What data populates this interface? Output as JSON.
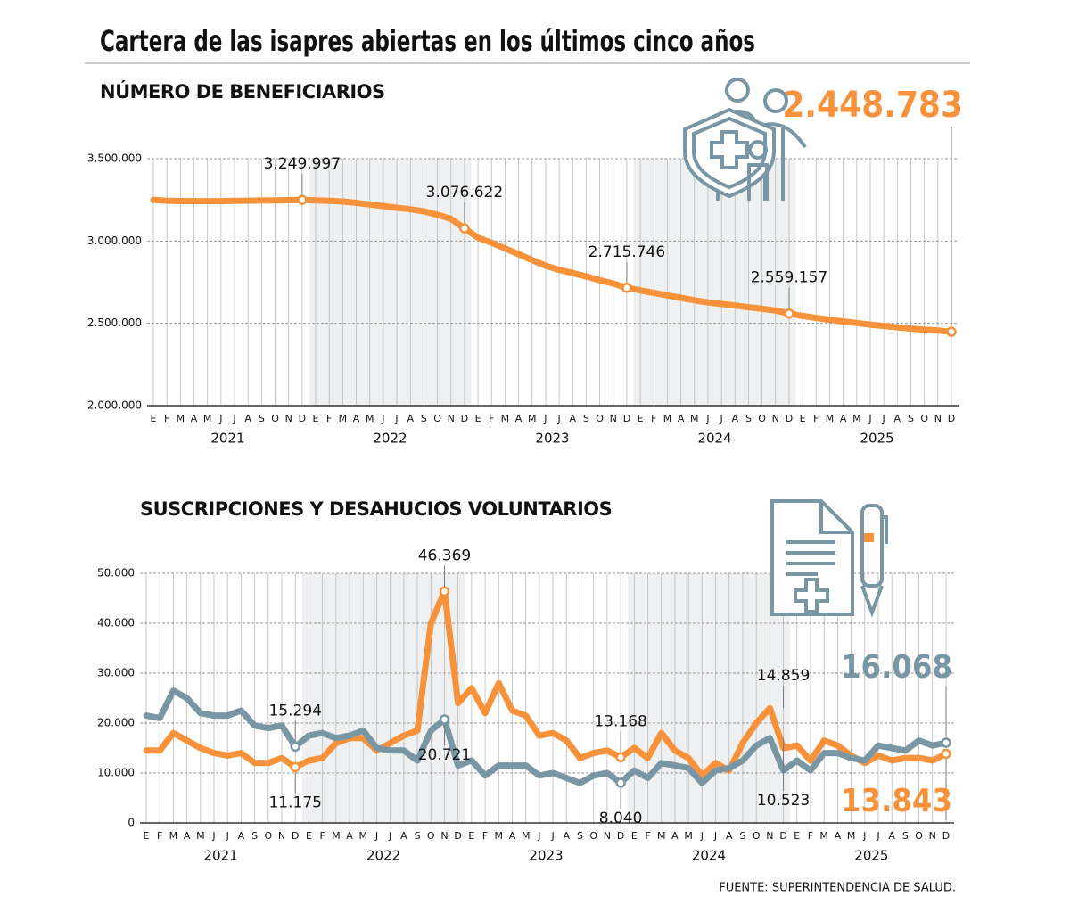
{
  "title": "Cartera de las isapres abiertas en los últimos cinco años",
  "source": "FUENTE: SUPERINTENDENCIA DE SALUD.",
  "chart_data": [
    {
      "type": "line",
      "title": "NÚMERO DE BENEFICIARIOS",
      "categories": [
        "E",
        "F",
        "M",
        "A",
        "M",
        "J",
        "J",
        "A",
        "S",
        "O",
        "N",
        "D",
        "E",
        "F",
        "M",
        "A",
        "M",
        "J",
        "J",
        "A",
        "S",
        "O",
        "N",
        "D",
        "E",
        "F",
        "M",
        "A",
        "M",
        "J",
        "J",
        "A",
        "S",
        "O",
        "N",
        "D",
        "E",
        "F",
        "M",
        "A",
        "M",
        "J",
        "J",
        "A",
        "S",
        "O",
        "N",
        "D",
        "E",
        "F",
        "M",
        "A",
        "M",
        "J",
        "J",
        "A",
        "S",
        "O",
        "N",
        "D"
      ],
      "years": [
        "2021",
        "2022",
        "2023",
        "2024",
        "2025"
      ],
      "ylim": [
        2000000,
        3500000
      ],
      "yticks": [
        {
          "value": 2000000,
          "label": "2.000.000"
        },
        {
          "value": 2500000,
          "label": "2.500.000"
        },
        {
          "value": 3000000,
          "label": "3.000.000"
        },
        {
          "value": 3500000,
          "label": "3.500.000"
        }
      ],
      "grid": true,
      "series": [
        {
          "color": "#f7923a",
          "values": [
            3250000,
            3245000,
            3243000,
            3242000,
            3242000,
            3242000,
            3244000,
            3245000,
            3246000,
            3247000,
            3248000,
            3249997,
            3247000,
            3244000,
            3240000,
            3232000,
            3222000,
            3212000,
            3202000,
            3193000,
            3180000,
            3160000,
            3135000,
            3076622,
            3020000,
            2990000,
            2955000,
            2920000,
            2885000,
            2850000,
            2825000,
            2805000,
            2785000,
            2762000,
            2742000,
            2715746,
            2700000,
            2685000,
            2670000,
            2655000,
            2640000,
            2627000,
            2618000,
            2608000,
            2598000,
            2588000,
            2578000,
            2559157,
            2545000,
            2533000,
            2522000,
            2512000,
            2502000,
            2492000,
            2484000,
            2476000,
            2468000,
            2462000,
            2456000,
            2448783
          ],
          "value_labels": [
            null,
            null,
            null,
            null,
            null,
            null,
            null,
            null,
            null,
            null,
            null,
            "3.249.997",
            null,
            null,
            null,
            null,
            null,
            null,
            null,
            null,
            null,
            null,
            null,
            "3.076.622",
            null,
            null,
            null,
            null,
            null,
            null,
            null,
            null,
            null,
            null,
            null,
            "2.715.746",
            null,
            null,
            null,
            null,
            null,
            null,
            null,
            null,
            null,
            null,
            null,
            "2.559.157",
            null,
            null,
            null,
            null,
            null,
            null,
            null,
            null,
            null,
            null,
            null,
            "2.448.783"
          ]
        }
      ]
    },
    {
      "type": "line",
      "title": "SUSCRIPCIONES Y DESAHUCIOS VOLUNTARIOS",
      "categories": [
        "E",
        "F",
        "M",
        "A",
        "M",
        "J",
        "J",
        "A",
        "S",
        "O",
        "N",
        "D",
        "E",
        "F",
        "M",
        "A",
        "M",
        "J",
        "J",
        "A",
        "S",
        "O",
        "N",
        "D",
        "E",
        "F",
        "M",
        "A",
        "M",
        "J",
        "J",
        "A",
        "S",
        "O",
        "N",
        "D",
        "E",
        "F",
        "M",
        "A",
        "M",
        "J",
        "J",
        "A",
        "S",
        "O",
        "N",
        "D",
        "E",
        "F",
        "M",
        "A",
        "M",
        "J",
        "J",
        "A",
        "S",
        "O",
        "N",
        "D"
      ],
      "years": [
        "2021",
        "2022",
        "2023",
        "2024",
        "2025"
      ],
      "ylim": [
        0,
        50000
      ],
      "yticks": [
        0,
        {
          "value": 10000,
          "label": "10.000"
        },
        {
          "value": 20000,
          "label": "20.000"
        },
        {
          "value": 30000,
          "label": "30.000"
        },
        {
          "value": 40000,
          "label": "40.000"
        },
        {
          "value": 50000,
          "label": "50.000"
        }
      ],
      "grid": true,
      "annotations": [
        "14.859",
        "10.523"
      ],
      "series": [
        {
          "color": "#f7923a",
          "values": [
            14500,
            14500,
            18000,
            16500,
            15000,
            14000,
            13500,
            14000,
            12000,
            12000,
            13000,
            11175,
            12500,
            13000,
            16000,
            17000,
            17000,
            14500,
            16000,
            17500,
            18500,
            40000,
            46369,
            24000,
            27000,
            22000,
            28000,
            22500,
            21500,
            17500,
            18000,
            16500,
            13000,
            14000,
            14500,
            13168,
            15000,
            13000,
            18000,
            14500,
            13000,
            9500,
            12000,
            10500,
            16000,
            20000,
            23000,
            15000,
            15500,
            12500,
            16500,
            15500,
            13500,
            12000,
            13500,
            12500,
            13000,
            13000,
            12500,
            13843
          ],
          "value_labels": [
            null,
            null,
            null,
            null,
            null,
            null,
            null,
            null,
            null,
            null,
            null,
            "11.175",
            null,
            null,
            null,
            null,
            null,
            null,
            null,
            null,
            null,
            null,
            "46.369",
            null,
            null,
            null,
            null,
            null,
            null,
            null,
            null,
            null,
            null,
            null,
            null,
            "13.168",
            null,
            null,
            null,
            null,
            null,
            null,
            null,
            null,
            null,
            null,
            null,
            null,
            null,
            null,
            null,
            null,
            null,
            null,
            null,
            null,
            null,
            null,
            null,
            "13.843"
          ]
        },
        {
          "color": "#7896a4",
          "values": [
            21500,
            21000,
            26500,
            25000,
            22000,
            21500,
            21500,
            22500,
            19500,
            19000,
            19500,
            15294,
            17500,
            18000,
            17000,
            17500,
            18500,
            15000,
            14500,
            14500,
            12500,
            18500,
            20721,
            11500,
            12500,
            9500,
            11500,
            11500,
            11500,
            9500,
            10000,
            9000,
            8000,
            9500,
            10000,
            8040,
            10500,
            9000,
            12000,
            11500,
            11000,
            8000,
            10500,
            11000,
            12500,
            15500,
            17000,
            10500,
            12500,
            10500,
            14000,
            14000,
            13000,
            12500,
            15500,
            15000,
            14500,
            16500,
            15500,
            16068
          ],
          "value_labels": [
            null,
            null,
            null,
            null,
            null,
            null,
            null,
            null,
            null,
            null,
            null,
            "15.294",
            null,
            null,
            null,
            null,
            null,
            null,
            null,
            null,
            null,
            null,
            "20.721",
            null,
            null,
            null,
            null,
            null,
            null,
            null,
            null,
            null,
            null,
            null,
            null,
            "8.040",
            null,
            null,
            null,
            null,
            null,
            null,
            null,
            null,
            null,
            null,
            null,
            null,
            null,
            null,
            null,
            null,
            null,
            null,
            null,
            null,
            null,
            null,
            null,
            "16.068"
          ]
        }
      ]
    }
  ]
}
